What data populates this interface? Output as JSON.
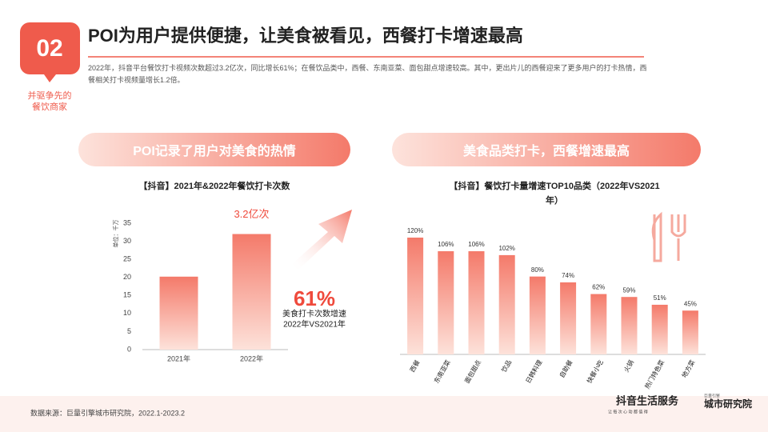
{
  "header": {
    "badge": "02",
    "badge_caption": [
      "并驱争先的",
      "餐饮商家"
    ],
    "title": "POI为用户提供便捷，让美食被看见，西餐打卡增速最高",
    "body": "2022年，抖音平台餐饮打卡视频次数超过3.2亿次，同比增长61%；在餐饮品类中，西餐、东南亚菜、面包甜点增速较高。其中，更出片儿的西餐迎来了更多用户的打卡热情，西餐相关打卡视频量增长1.2倍。"
  },
  "panels": [
    {
      "title": "POI记录了用户对美食的热情"
    },
    {
      "title": "美食品类打卡，西餐增速最高"
    }
  ],
  "chart_data": [
    {
      "type": "bar",
      "title": "【抖音】2021年&2022年餐饮打卡次数",
      "y_label": "单位：千万",
      "categories": [
        "2021年",
        "2022年"
      ],
      "values": [
        20.2,
        32
      ],
      "value_labels": [
        null,
        "3.2亿次"
      ],
      "color": "#f47a6a",
      "ylim": [
        0,
        35
      ],
      "yticks": [
        0,
        5,
        10,
        15,
        20,
        25,
        30,
        35
      ]
    },
    {
      "type": "bar",
      "title": "【抖音】餐饮打卡量增速TOP10品类（2022年VS2021年）",
      "categories": [
        "西餐",
        "东南亚菜",
        "面包甜点",
        "饮品",
        "日韩料理",
        "自助餐",
        "快餐小吃",
        "火锅",
        "热门特色菜",
        "地方菜"
      ],
      "values": [
        120,
        106,
        106,
        102,
        80,
        74,
        62,
        59,
        51,
        45
      ],
      "value_labels": [
        "120%",
        "106%",
        "106%",
        "102%",
        "80%",
        "74%",
        "62%",
        "59%",
        "51%",
        "45%"
      ],
      "color": "#f47a6a"
    }
  ],
  "callout": {
    "value": "61%",
    "lines": [
      "美食打卡次数增速",
      "2022年VS2021年"
    ]
  },
  "footer": {
    "source": "数据来源：巨量引擎城市研究院，2022.1-2023.2",
    "logo1": "抖音生活服务",
    "logo1_sub": "让 每 次 心 动 都 值 得",
    "logo2_top": "巨量引擎",
    "logo2": "城市研究院"
  }
}
